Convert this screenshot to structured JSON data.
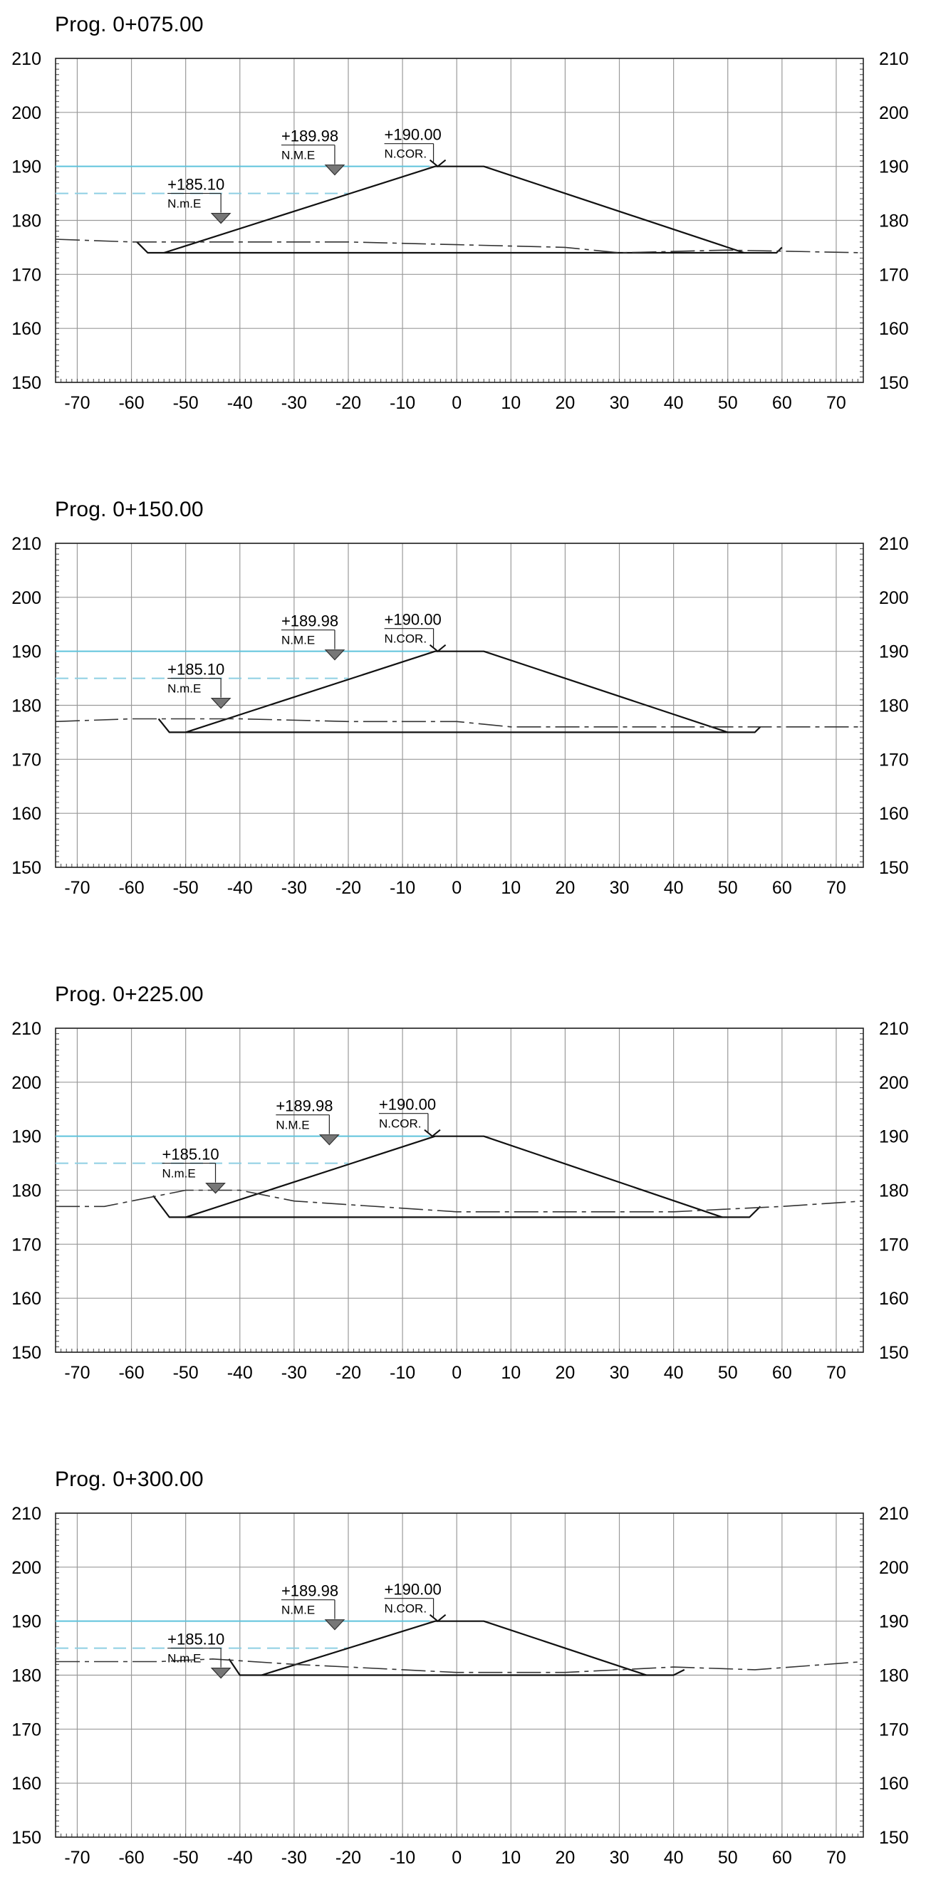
{
  "chart_data": [
    {
      "type": "line",
      "title": "Prog. 0+075.00",
      "xlim": [
        -74,
        75
      ],
      "ylim": [
        150,
        210
      ],
      "x_ticks": [
        -70,
        -60,
        -50,
        -40,
        -30,
        -20,
        -10,
        0,
        10,
        20,
        30,
        40,
        50,
        60,
        70
      ],
      "y_ticks": [
        150,
        160,
        170,
        180,
        190,
        200,
        210
      ],
      "grid": true,
      "water_levels": [
        {
          "label": "+189.98",
          "tag": "N.M.E",
          "y": 190,
          "style": "solid",
          "color": "#5fc3dc",
          "x_end": -5,
          "marker_x": -22.5
        },
        {
          "label": "+185.10",
          "tag": "N.m.E",
          "y": 185,
          "style": "dashed",
          "color": "#8ecfe3",
          "x_end": -20,
          "marker_x": -43.5
        }
      ],
      "crown": {
        "label": "+190.00",
        "tag": "N.COR.",
        "x": -3.5,
        "y": 190
      },
      "series": [
        {
          "role": "embankment",
          "style": "solid",
          "color": "#111111",
          "x": [
            -54,
            -4,
            5,
            53
          ],
          "y": [
            174,
            190,
            190,
            174
          ]
        },
        {
          "role": "excavation",
          "style": "solid",
          "color": "#111111",
          "x": [
            -59,
            -57,
            59,
            60
          ],
          "y": [
            176,
            174,
            174,
            175
          ]
        },
        {
          "role": "terrain",
          "style": "dashed",
          "color": "#333333",
          "x": [
            -74,
            -60,
            -20,
            0,
            20,
            30,
            50,
            75
          ],
          "y": [
            176.5,
            176,
            176,
            175.5,
            175,
            174,
            174.5,
            174
          ]
        }
      ]
    },
    {
      "type": "line",
      "title": "Prog. 0+150.00",
      "xlim": [
        -74,
        75
      ],
      "ylim": [
        150,
        210
      ],
      "x_ticks": [
        -70,
        -60,
        -50,
        -40,
        -30,
        -20,
        -10,
        0,
        10,
        20,
        30,
        40,
        50,
        60,
        70
      ],
      "y_ticks": [
        150,
        160,
        170,
        180,
        190,
        200,
        210
      ],
      "grid": true,
      "water_levels": [
        {
          "label": "+189.98",
          "tag": "N.M.E",
          "y": 190,
          "style": "solid",
          "color": "#5fc3dc",
          "x_end": -5,
          "marker_x": -22.5
        },
        {
          "label": "+185.10",
          "tag": "N.m.E",
          "y": 185,
          "style": "dashed",
          "color": "#8ecfe3",
          "x_end": -20,
          "marker_x": -43.5
        }
      ],
      "crown": {
        "label": "+190.00",
        "tag": "N.COR.",
        "x": -3.5,
        "y": 190
      },
      "series": [
        {
          "role": "embankment",
          "style": "solid",
          "color": "#111111",
          "x": [
            -50,
            -4,
            5,
            50
          ],
          "y": [
            175,
            190,
            190,
            175
          ]
        },
        {
          "role": "excavation",
          "style": "solid",
          "color": "#111111",
          "x": [
            -55,
            -53,
            55,
            56
          ],
          "y": [
            177.5,
            175,
            175,
            176
          ]
        },
        {
          "role": "terrain",
          "style": "dashed",
          "color": "#333333",
          "x": [
            -74,
            -60,
            -40,
            -20,
            0,
            10,
            50,
            75
          ],
          "y": [
            177,
            177.5,
            177.5,
            177,
            177,
            176,
            176,
            176
          ]
        }
      ]
    },
    {
      "type": "line",
      "title": "Prog. 0+225.00",
      "xlim": [
        -74,
        75
      ],
      "ylim": [
        150,
        210
      ],
      "x_ticks": [
        -70,
        -60,
        -50,
        -40,
        -30,
        -20,
        -10,
        0,
        10,
        20,
        30,
        40,
        50,
        60,
        70
      ],
      "y_ticks": [
        150,
        160,
        170,
        180,
        190,
        200,
        210
      ],
      "grid": true,
      "water_levels": [
        {
          "label": "+189.98",
          "tag": "N.M.E",
          "y": 190,
          "style": "solid",
          "color": "#5fc3dc",
          "x_end": -5,
          "marker_x": -23.5
        },
        {
          "label": "+185.10",
          "tag": "N.m.E",
          "y": 185,
          "style": "dashed",
          "color": "#8ecfe3",
          "x_end": -20,
          "marker_x": -44.5
        }
      ],
      "crown": {
        "label": "+190.00",
        "tag": "N.COR.",
        "x": -4.5,
        "y": 190
      },
      "series": [
        {
          "role": "embankment",
          "style": "solid",
          "color": "#111111",
          "x": [
            -50,
            -4,
            5,
            49
          ],
          "y": [
            175,
            190,
            190,
            175
          ]
        },
        {
          "role": "excavation",
          "style": "solid",
          "color": "#111111",
          "x": [
            -56,
            -53,
            54,
            56
          ],
          "y": [
            179,
            175,
            175,
            177
          ]
        },
        {
          "role": "terrain",
          "style": "dashed",
          "color": "#333333",
          "x": [
            -74,
            -65,
            -55,
            -50,
            -40,
            -30,
            0,
            40,
            50,
            60,
            75
          ],
          "y": [
            177,
            177,
            179,
            180,
            180,
            178,
            176,
            176,
            176.5,
            177,
            178
          ]
        }
      ]
    },
    {
      "type": "line",
      "title": "Prog. 0+300.00",
      "xlim": [
        -74,
        75
      ],
      "ylim": [
        150,
        210
      ],
      "x_ticks": [
        -70,
        -60,
        -50,
        -40,
        -30,
        -20,
        -10,
        0,
        10,
        20,
        30,
        40,
        50,
        60,
        70
      ],
      "y_ticks": [
        150,
        160,
        170,
        180,
        190,
        200,
        210
      ],
      "grid": true,
      "water_levels": [
        {
          "label": "+189.98",
          "tag": "N.M.E",
          "y": 190,
          "style": "solid",
          "color": "#5fc3dc",
          "x_end": -5,
          "marker_x": -22.5
        },
        {
          "label": "+185.10",
          "tag": "N.m.E",
          "y": 185,
          "style": "dashed",
          "color": "#8ecfe3",
          "x_end": -20,
          "marker_x": -43.5
        }
      ],
      "crown": {
        "label": "+190.00",
        "tag": "N.COR.",
        "x": -3.5,
        "y": 190
      },
      "series": [
        {
          "role": "embankment",
          "style": "solid",
          "color": "#111111",
          "x": [
            -36,
            -4,
            5,
            35
          ],
          "y": [
            180,
            190,
            190,
            180
          ]
        },
        {
          "role": "excavation",
          "style": "solid",
          "color": "#111111",
          "x": [
            -42,
            -40,
            40,
            42
          ],
          "y": [
            183,
            180,
            180,
            181
          ]
        },
        {
          "role": "terrain",
          "style": "dashed",
          "color": "#333333",
          "x": [
            -74,
            -55,
            -45,
            -30,
            0,
            20,
            40,
            55,
            75
          ],
          "y": [
            182.5,
            182.5,
            183,
            182,
            180.5,
            180.5,
            181.5,
            181,
            182.5
          ]
        }
      ]
    }
  ]
}
